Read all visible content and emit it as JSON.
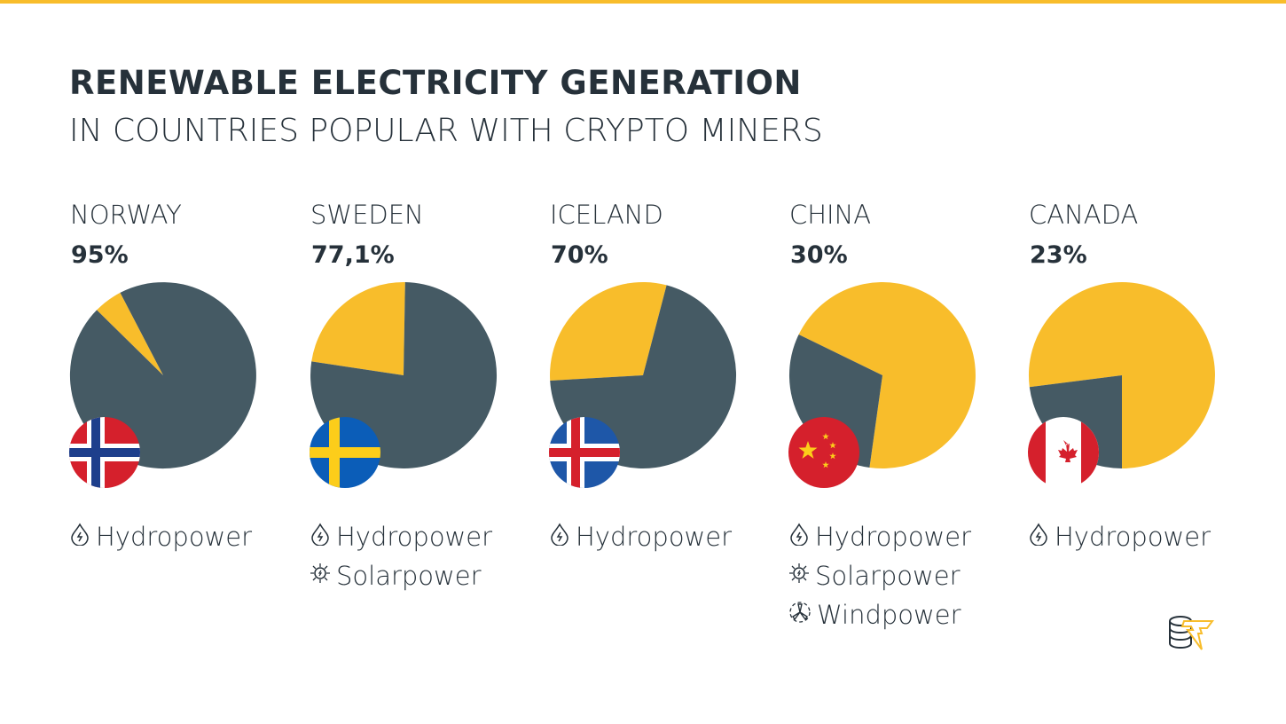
{
  "title": "RENEWABLE ELECTRICITY GENERATION",
  "subtitle": "IN COUNTRIES POPULAR WITH CRYPTO MINERS",
  "colors": {
    "renewable": "#455a64",
    "other": "#f8bd2b",
    "accent": "#f8bd2b"
  },
  "chart_data": {
    "type": "pie",
    "charts": [
      {
        "country": "NORWAY",
        "label": "95%",
        "renewable": 95,
        "flag": "norway",
        "sources": [
          {
            "icon": "hydro-icon",
            "label": "Hydropower"
          }
        ]
      },
      {
        "country": "SWEDEN",
        "label": "77,1%",
        "renewable": 77.1,
        "flag": "sweden",
        "sources": [
          {
            "icon": "hydro-icon",
            "label": "Hydropower"
          },
          {
            "icon": "solar-icon",
            "label": "Solarpower"
          }
        ]
      },
      {
        "country": "ICELAND",
        "label": "70%",
        "renewable": 70,
        "flag": "iceland",
        "sources": [
          {
            "icon": "hydro-icon",
            "label": "Hydropower"
          }
        ]
      },
      {
        "country": "CHINA",
        "label": "30%",
        "renewable": 30,
        "flag": "china",
        "sources": [
          {
            "icon": "hydro-icon",
            "label": "Hydropower"
          },
          {
            "icon": "solar-icon",
            "label": "Solarpower"
          },
          {
            "icon": "wind-icon",
            "label": "Windpower"
          }
        ]
      },
      {
        "country": "CANADA",
        "label": "23%",
        "renewable": 23,
        "flag": "canada",
        "sources": [
          {
            "icon": "hydro-icon",
            "label": "Hydropower"
          }
        ]
      }
    ]
  }
}
